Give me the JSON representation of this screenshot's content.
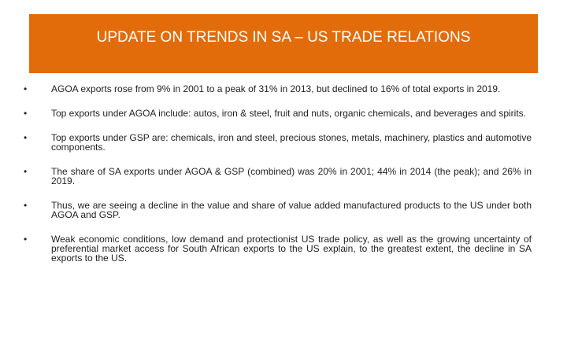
{
  "header": {
    "title": "UPDATE ON TRENDS IN SA – US TRADE RELATIONS"
  },
  "bullets": [
    "AGOA exports rose from 9% in 2001 to a peak of 31% in 2013, but declined to 16% of total exports in 2019.",
    "Top exports under AGOA include: autos, iron & steel, fruit and nuts, organic chemicals, and beverages and spirits.",
    "Top exports under GSP are: chemicals, iron and steel, precious stones, metals, machinery, plastics and automotive components.",
    "The share of SA exports under AGOA & GSP (combined) was 20% in 2001; 44% in 2014 (the peak); and 26% in 2019.",
    "Thus, we are seeing a decline in the value and share of value added manufactured products to the US under both AGOA and GSP.",
    "Weak economic conditions, low demand and protectionist US trade policy, as well as the growing uncertainty of preferential market access for South African exports to the US explain, to the greatest extent, the decline in SA exports to the US."
  ]
}
